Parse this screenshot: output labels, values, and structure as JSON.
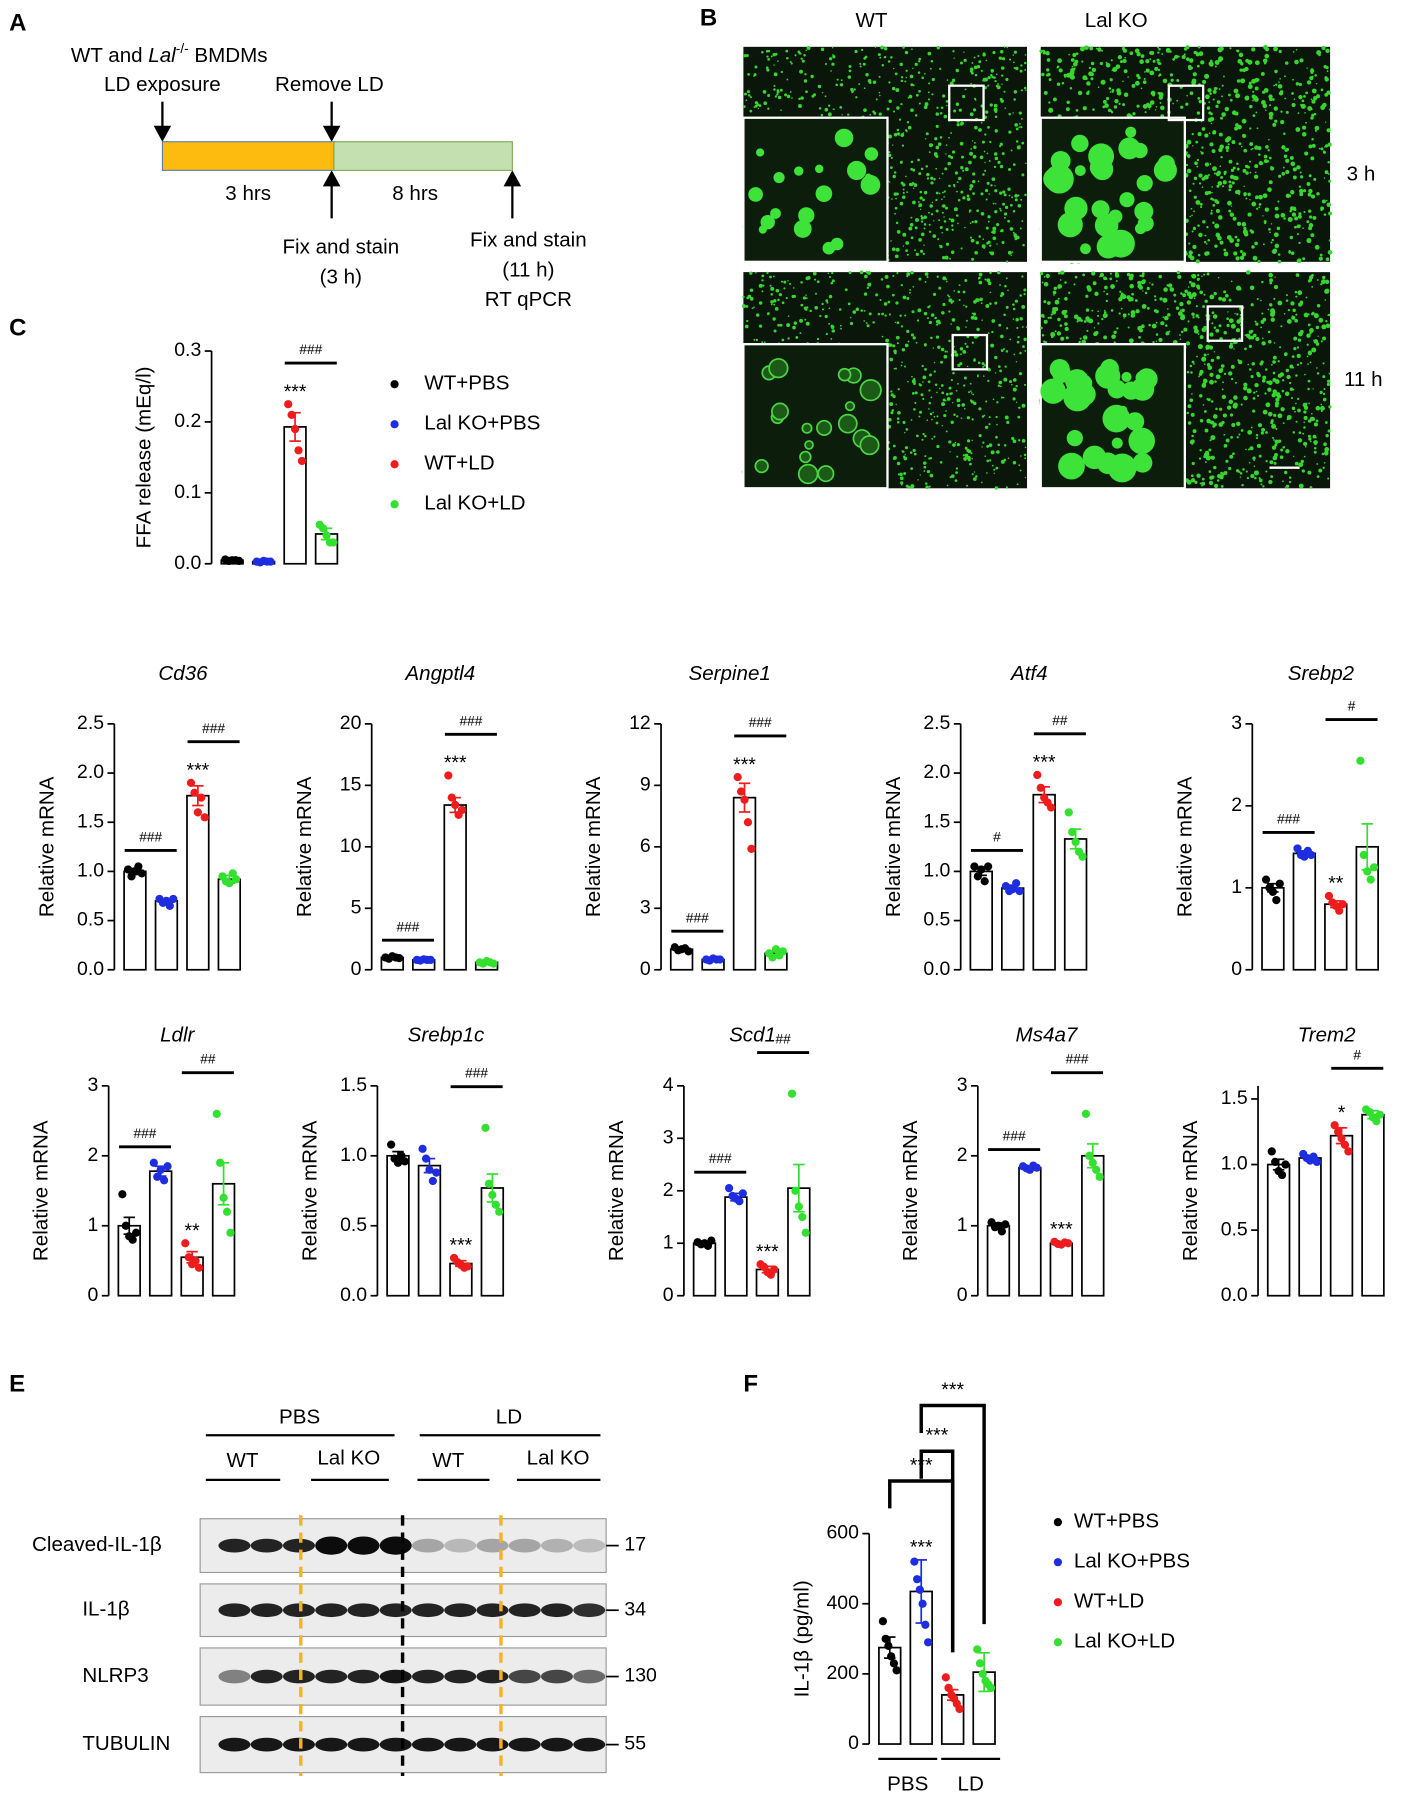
{
  "panel_a": {
    "letter": "A",
    "line1_pre": "WT and ",
    "line1_gene": "Lal",
    "line1_sup": "-/-",
    "line1_post": " BMDMs",
    "exposure": "LD exposure",
    "remove": "Remove LD",
    "dur1": "3 hrs",
    "dur2": "8 hrs",
    "fix1": "Fix and stain",
    "fix1_time": "(3 h)",
    "fix2": "Fix and stain",
    "fix2_time": "(11 h)",
    "assay": "RT qPCR"
  },
  "panel_b": {
    "letter": "B",
    "columns": [
      "WT",
      "Lal KO"
    ],
    "rows": [
      "3 h",
      "11 h"
    ]
  },
  "panel_e": {
    "letter": "E",
    "groups": [
      "PBS",
      "LD"
    ],
    "subgroups": [
      "WT",
      "Lal KO",
      "WT",
      "Lal KO"
    ],
    "blots": [
      {
        "label": "Cleaved-IL-1β",
        "size": 17
      },
      {
        "label": "IL-1β",
        "size": 34
      },
      {
        "label": "NLRP3",
        "size": 130
      },
      {
        "label": "TUBULIN",
        "size": 55
      }
    ]
  },
  "chart_data": [
    {
      "type": "bar",
      "panel": "C",
      "ylabel": "FFA  release (mEq/l)",
      "ylim": [
        0,
        0.3
      ],
      "yticks": [
        {
          "value": 0,
          "label": "0.0"
        },
        0.1,
        0.2,
        0.3
      ],
      "legend": [
        "WT+PBS",
        "Lal KO+PBS",
        "WT+LD",
        "Lal KO+LD"
      ],
      "colors": [
        "#000000",
        "#1f2de0",
        "#ee1c1c",
        "#33e02f"
      ],
      "values": [
        0.005,
        0.003,
        0.193,
        0.042
      ],
      "errors": [
        0.001,
        0.001,
        0.02,
        0.008
      ],
      "points": [
        [
          0.006,
          0.004,
          0.005,
          0.005,
          0.004
        ],
        [
          0.003,
          0.002,
          0.004,
          0.003,
          0.003
        ],
        [
          0.225,
          0.21,
          0.19,
          0.16,
          0.145
        ],
        [
          0.055,
          0.05,
          0.04,
          0.03,
          0.03
        ]
      ],
      "stars": [
        null,
        null,
        "***",
        null
      ],
      "brackets": [
        {
          "label": "###",
          "from": 2,
          "to": 3
        }
      ]
    },
    {
      "type": "bar",
      "title": "Cd36",
      "ylabel": "Relative mRNA",
      "ylim": [
        0,
        2.5
      ],
      "yticks": [
        {
          "value": 0,
          "label": "0.0"
        },
        0.5,
        {
          "value": 1,
          "label": "1.0"
        },
        1.5,
        {
          "value": 2,
          "label": "2.0"
        },
        2.5
      ],
      "colors": [
        "#000000",
        "#1f2de0",
        "#ee1c1c",
        "#33e02f"
      ],
      "values": [
        1.0,
        0.7,
        1.77,
        0.92
      ],
      "errors": [
        0.03,
        0.02,
        0.1,
        0.04
      ],
      "points": [
        [
          1.02,
          0.95,
          1.0,
          1.05,
          0.98
        ],
        [
          0.72,
          0.68,
          0.7,
          0.65,
          0.72
        ],
        [
          1.9,
          1.8,
          1.6,
          1.75,
          1.55
        ],
        [
          0.95,
          0.9,
          0.88,
          0.98,
          0.92
        ]
      ],
      "stars": [
        null,
        null,
        "***",
        null
      ],
      "brackets": [
        {
          "label": "###",
          "from": 0,
          "to": 1
        },
        {
          "label": "###",
          "from": 2,
          "to": 3
        }
      ]
    },
    {
      "type": "bar",
      "title": "Angptl4",
      "ylabel": "Relative mRNA",
      "ylim": [
        0,
        20
      ],
      "yticks": [
        0,
        5,
        10,
        15,
        20
      ],
      "colors": [
        "#000000",
        "#1f2de0",
        "#ee1c1c",
        "#33e02f"
      ],
      "values": [
        1.0,
        0.8,
        13.4,
        0.6
      ],
      "errors": [
        0.05,
        0.05,
        0.6,
        0.1
      ],
      "points": [
        [
          1.0,
          0.9,
          1.1,
          1.0,
          0.95
        ],
        [
          0.8,
          0.75,
          0.85,
          0.8,
          0.8
        ],
        [
          15.8,
          14.0,
          13.4,
          12.6,
          13.0
        ],
        [
          0.6,
          0.5,
          0.7,
          0.6,
          0.5
        ]
      ],
      "stars": [
        null,
        null,
        "***",
        null
      ],
      "brackets": [
        {
          "label": "###",
          "from": 0,
          "to": 1
        },
        {
          "label": "###",
          "from": 2,
          "to": 3
        }
      ]
    },
    {
      "type": "bar",
      "title": "Serpine1",
      "ylabel": "Relative mRNA",
      "ylim": [
        0,
        12
      ],
      "yticks": [
        0,
        3,
        6,
        9,
        12
      ],
      "colors": [
        "#000000",
        "#1f2de0",
        "#ee1c1c",
        "#33e02f"
      ],
      "values": [
        1.0,
        0.5,
        8.4,
        0.8
      ],
      "errors": [
        0.05,
        0.05,
        0.7,
        0.1
      ],
      "points": [
        [
          1.1,
          0.95,
          1.0,
          1.05,
          0.9
        ],
        [
          0.5,
          0.45,
          0.55,
          0.5,
          0.5
        ],
        [
          9.4,
          8.7,
          8.3,
          7.2,
          5.9
        ],
        [
          0.8,
          0.6,
          1.0,
          0.7,
          0.9
        ]
      ],
      "stars": [
        null,
        null,
        "***",
        null
      ],
      "brackets": [
        {
          "label": "###",
          "from": 0,
          "to": 1
        },
        {
          "label": "###",
          "from": 2,
          "to": 3
        }
      ]
    },
    {
      "type": "bar",
      "title": "Atf4",
      "ylabel": "Relative mRNA",
      "ylim": [
        0,
        2.5
      ],
      "yticks": [
        {
          "value": 0,
          "label": "0.0"
        },
        0.5,
        {
          "value": 1,
          "label": "1.0"
        },
        1.5,
        {
          "value": 2,
          "label": "2.0"
        },
        2.5
      ],
      "colors": [
        "#000000",
        "#1f2de0",
        "#ee1c1c",
        "#33e02f"
      ],
      "values": [
        1.0,
        0.83,
        1.78,
        1.33
      ],
      "errors": [
        0.04,
        0.03,
        0.08,
        0.1
      ],
      "points": [
        [
          1.05,
          0.95,
          1.02,
          0.9,
          1.05
        ],
        [
          0.85,
          0.8,
          0.82,
          0.88,
          0.8
        ],
        [
          1.98,
          1.85,
          1.75,
          1.7,
          1.65
        ],
        [
          1.6,
          1.4,
          1.3,
          1.2,
          1.15
        ]
      ],
      "stars": [
        null,
        null,
        "***",
        null
      ],
      "brackets": [
        {
          "label": "#",
          "from": 0,
          "to": 1
        },
        {
          "label": "##",
          "from": 2,
          "to": 3
        }
      ]
    },
    {
      "type": "bar",
      "title": "Srebp2",
      "ylabel": "Relative mRNA",
      "ylim": [
        0,
        3
      ],
      "yticks": [
        0,
        1,
        2,
        3
      ],
      "colors": [
        "#000000",
        "#1f2de0",
        "#ee1c1c",
        "#33e02f"
      ],
      "values": [
        1.0,
        1.42,
        0.8,
        1.5
      ],
      "errors": [
        0.05,
        0.03,
        0.04,
        0.28
      ],
      "points": [
        [
          1.1,
          1.0,
          0.95,
          0.85,
          1.05
        ],
        [
          1.48,
          1.4,
          1.38,
          1.45,
          1.4
        ],
        [
          0.9,
          0.82,
          0.78,
          0.72,
          0.8
        ],
        [
          2.55,
          1.4,
          1.2,
          1.1,
          1.25
        ]
      ],
      "stars": [
        null,
        null,
        "**",
        null
      ],
      "brackets": [
        {
          "label": "###",
          "from": 0,
          "to": 1
        },
        {
          "label": "#",
          "from": 2,
          "to": 3
        }
      ]
    },
    {
      "type": "bar",
      "title": "Ldlr",
      "ylabel": "Relative mRNA",
      "ylim": [
        0,
        3
      ],
      "yticks": [
        0,
        1,
        2,
        3
      ],
      "colors": [
        "#000000",
        "#1f2de0",
        "#ee1c1c",
        "#33e02f"
      ],
      "values": [
        1.0,
        1.78,
        0.55,
        1.6
      ],
      "errors": [
        0.12,
        0.07,
        0.08,
        0.3
      ],
      "points": [
        [
          1.45,
          1.0,
          0.85,
          0.8,
          0.9
        ],
        [
          1.9,
          1.7,
          1.8,
          1.65,
          1.85
        ],
        [
          0.75,
          0.55,
          0.45,
          0.5,
          0.4
        ],
        [
          2.6,
          1.9,
          1.4,
          1.2,
          0.9
        ]
      ],
      "stars": [
        null,
        null,
        "**",
        null
      ],
      "brackets": [
        {
          "label": "###",
          "from": 0,
          "to": 1
        },
        {
          "label": "##",
          "from": 2,
          "to": 3
        }
      ]
    },
    {
      "type": "bar",
      "title": "Srebp1c",
      "ylabel": "Relative mRNA",
      "ylim": [
        0,
        1.5
      ],
      "yticks": [
        {
          "value": 0,
          "label": "0.0"
        },
        0.5,
        {
          "value": 1,
          "label": "1.0"
        },
        1.5
      ],
      "colors": [
        "#000000",
        "#1f2de0",
        "#ee1c1c",
        "#33e02f"
      ],
      "values": [
        1.0,
        0.93,
        0.23,
        0.77
      ],
      "errors": [
        0.03,
        0.05,
        0.02,
        0.1
      ],
      "points": [
        [
          1.08,
          0.98,
          0.95,
          1.0,
          0.96
        ],
        [
          1.05,
          0.98,
          0.9,
          0.82,
          0.88
        ],
        [
          0.27,
          0.24,
          0.22,
          0.2,
          0.21
        ],
        [
          1.2,
          0.8,
          0.72,
          0.65,
          0.6
        ]
      ],
      "stars": [
        null,
        null,
        "***",
        null
      ],
      "brackets": [
        {
          "label": "###",
          "from": 2,
          "to": 3
        }
      ]
    },
    {
      "type": "bar",
      "title": "Scd1",
      "ylabel": "Relative mRNA",
      "ylim": [
        0,
        4
      ],
      "yticks": [
        0,
        1,
        2,
        3,
        4
      ],
      "colors": [
        "#000000",
        "#1f2de0",
        "#ee1c1c",
        "#33e02f"
      ],
      "values": [
        1.0,
        1.88,
        0.5,
        2.05
      ],
      "errors": [
        0.03,
        0.07,
        0.06,
        0.45
      ],
      "points": [
        [
          1.02,
          0.98,
          1.0,
          0.95,
          1.05
        ],
        [
          2.05,
          1.9,
          1.85,
          1.8,
          1.95
        ],
        [
          0.6,
          0.55,
          0.45,
          0.4,
          0.5
        ],
        [
          3.85,
          2.0,
          1.7,
          1.5,
          1.2
        ]
      ],
      "stars": [
        null,
        null,
        "***",
        null
      ],
      "brackets": [
        {
          "label": "###",
          "from": 0,
          "to": 1
        },
        {
          "label": "##",
          "from": 2,
          "to": 3
        }
      ]
    },
    {
      "type": "bar",
      "title": "Ms4a7",
      "ylabel": "Relative mRNA",
      "ylim": [
        0,
        3
      ],
      "yticks": [
        0,
        1,
        2,
        3
      ],
      "colors": [
        "#000000",
        "#1f2de0",
        "#ee1c1c",
        "#33e02f"
      ],
      "values": [
        1.0,
        1.83,
        0.75,
        2.0
      ],
      "errors": [
        0.04,
        0.02,
        0.02,
        0.17
      ],
      "points": [
        [
          1.05,
          0.98,
          1.0,
          0.92,
          1.02
        ],
        [
          1.85,
          1.82,
          1.8,
          1.86,
          1.83
        ],
        [
          0.77,
          0.74,
          0.73,
          0.76,
          0.75
        ],
        [
          2.6,
          2.0,
          1.9,
          1.8,
          1.7
        ]
      ],
      "stars": [
        null,
        null,
        "***",
        null
      ],
      "brackets": [
        {
          "label": "###",
          "from": 0,
          "to": 1
        },
        {
          "label": "###",
          "from": 2,
          "to": 3
        }
      ]
    },
    {
      "type": "bar",
      "title": "Trem2",
      "ylabel": "Relative mRNA",
      "ylim": [
        0,
        1.6
      ],
      "yticks": [
        {
          "value": 0,
          "label": "0.0"
        },
        0.5,
        {
          "value": 1,
          "label": "1.0"
        },
        1.5
      ],
      "colors": [
        "#000000",
        "#1f2de0",
        "#ee1c1c",
        "#33e02f"
      ],
      "values": [
        1.0,
        1.05,
        1.22,
        1.38
      ],
      "errors": [
        0.04,
        0.02,
        0.06,
        0.03
      ],
      "points": [
        [
          1.1,
          1.02,
          0.95,
          0.92,
          1.0
        ],
        [
          1.08,
          1.05,
          1.03,
          1.06,
          1.02
        ],
        [
          1.3,
          1.25,
          1.2,
          1.15,
          1.1
        ],
        [
          1.42,
          1.4,
          1.36,
          1.33,
          1.38
        ]
      ],
      "stars": [
        null,
        null,
        "*",
        null
      ],
      "brackets": [
        {
          "label": "#",
          "from": 2,
          "to": 3
        }
      ]
    },
    {
      "type": "bar",
      "panel": "F",
      "ylabel": "IL-1β (pg/ml)",
      "ylim": [
        0,
        600
      ],
      "yticks": [
        0,
        200,
        400,
        600
      ],
      "legend": [
        "WT+PBS",
        "Lal KO+PBS",
        "WT+LD",
        "Lal KO+LD"
      ],
      "colors": [
        "#000000",
        "#1f2de0",
        "#ee1c1c",
        "#33e02f"
      ],
      "values": [
        275,
        435,
        140,
        205
      ],
      "errors": [
        30,
        90,
        15,
        55
      ],
      "points": [
        [
          350,
          300,
          280,
          250,
          230,
          210
        ],
        [
          520,
          470,
          440,
          400,
          340,
          290
        ],
        [
          190,
          160,
          140,
          130,
          115,
          100
        ],
        [
          270,
          230,
          200,
          180,
          170,
          160
        ]
      ],
      "stars": [
        null,
        "***",
        null,
        null
      ],
      "brackets": [
        {
          "label": "***",
          "from": 0,
          "to": 2
        },
        {
          "label": "***",
          "from": 1,
          "to": 2
        },
        {
          "label": "***",
          "from": 1,
          "to": 3
        }
      ],
      "group_labels": [
        {
          "label": "PBS",
          "from": 0,
          "to": 1
        },
        {
          "label": "LD",
          "from": 2,
          "to": 3
        }
      ]
    }
  ]
}
